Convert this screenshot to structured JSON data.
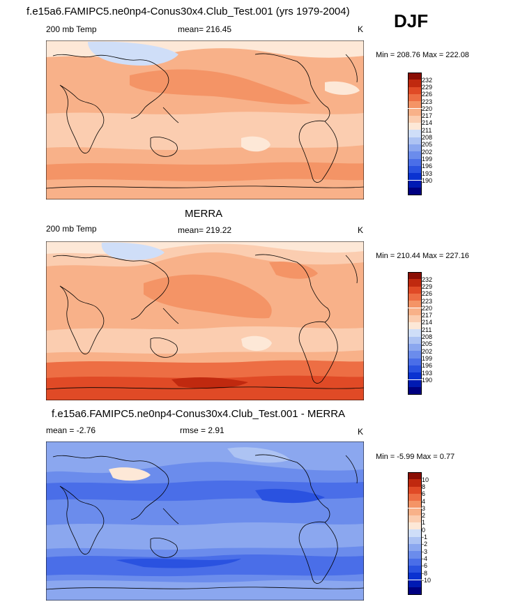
{
  "figure": {
    "title": "f.e15a6.FAMIPC5.ne0np4-Conus30x4.Club_Test.001 (yrs 1979-2004)",
    "season": "DJF"
  },
  "colors": {
    "temp_levels": [
      "#000080",
      "#001ab3",
      "#0a32d1",
      "#2a52e0",
      "#4a6ee8",
      "#6b8cec",
      "#8ba7ef",
      "#adc3f3",
      "#cfdef8",
      "#fde8d7",
      "#fbcdb0",
      "#f8b189",
      "#f49466",
      "#ed6e44",
      "#e04a26",
      "#c0290f",
      "#8a0e04"
    ],
    "diff_levels": [
      "#000080",
      "#001ab3",
      "#0a32d1",
      "#2a52e0",
      "#4a6ee8",
      "#6b8cec",
      "#8ba7ef",
      "#adc3f3",
      "#cfdef8",
      "#fde8d7",
      "#fbcdb0",
      "#f8b189",
      "#f49466",
      "#ed6e44",
      "#e04a26",
      "#c0290f",
      "#8a0e04"
    ]
  },
  "panels": [
    {
      "header": "",
      "left_label": "200 mb Temp",
      "center_label": "mean= 216.45",
      "units": "K",
      "minmax": "Min = 208.76 Max = 222.08"
    },
    {
      "header": "MERRA",
      "left_label": "200 mb Temp",
      "center_label": "mean= 219.22",
      "units": "K",
      "minmax": "Min = 210.44 Max = 227.16"
    },
    {
      "header": "f.e15a6.FAMIPC5.ne0np4-Conus30x4.Club_Test.001 - MERRA",
      "left_label": "mean =  -2.76",
      "center_label": "rmse =   2.91",
      "units": "K",
      "minmax": "Min =  -5.99 Max =   0.77"
    }
  ],
  "chart_data": [
    {
      "type": "heatmap",
      "title": "200 mb Temp",
      "units": "K",
      "mean": 216.45,
      "min": 208.76,
      "max": 222.08,
      "colorbar_ticks": [
        "232",
        "229",
        "226",
        "223",
        "220",
        "217",
        "214",
        "211",
        "208",
        "205",
        "202",
        "199",
        "196",
        "193",
        "190"
      ]
    },
    {
      "type": "heatmap",
      "title": "200 mb Temp",
      "units": "K",
      "mean": 219.22,
      "min": 210.44,
      "max": 227.16,
      "colorbar_ticks": [
        "232",
        "229",
        "226",
        "223",
        "220",
        "217",
        "214",
        "211",
        "208",
        "205",
        "202",
        "199",
        "196",
        "193",
        "190"
      ]
    },
    {
      "type": "heatmap",
      "units": "K",
      "mean": -2.76,
      "rmse": 2.91,
      "min": -5.99,
      "max": 0.77,
      "colorbar_ticks": [
        "10",
        "8",
        "6",
        "4",
        "3",
        "2",
        "1",
        "0",
        "-1",
        "-2",
        "-3",
        "-4",
        "-6",
        "-8",
        "-10"
      ]
    }
  ]
}
